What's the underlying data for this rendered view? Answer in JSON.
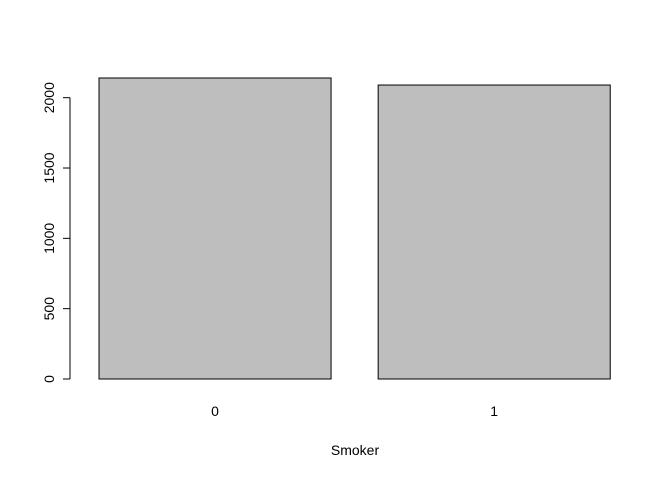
{
  "chart_data": {
    "type": "bar",
    "title": "",
    "xlabel": "Smoker",
    "ylabel": "",
    "categories": [
      "0",
      "1"
    ],
    "values": [
      2140,
      2090
    ],
    "ylim": [
      0,
      2140
    ],
    "yticks": [
      0,
      500,
      1000,
      1500,
      2000
    ],
    "ytick_labels": [
      "0",
      "500",
      "1000",
      "1500",
      "2000"
    ],
    "grid": false,
    "legend": "none",
    "colors": {
      "bar_fill": "#bebebe",
      "bar_stroke": "#000000",
      "axis": "#000000",
      "background": "#ffffff"
    }
  }
}
